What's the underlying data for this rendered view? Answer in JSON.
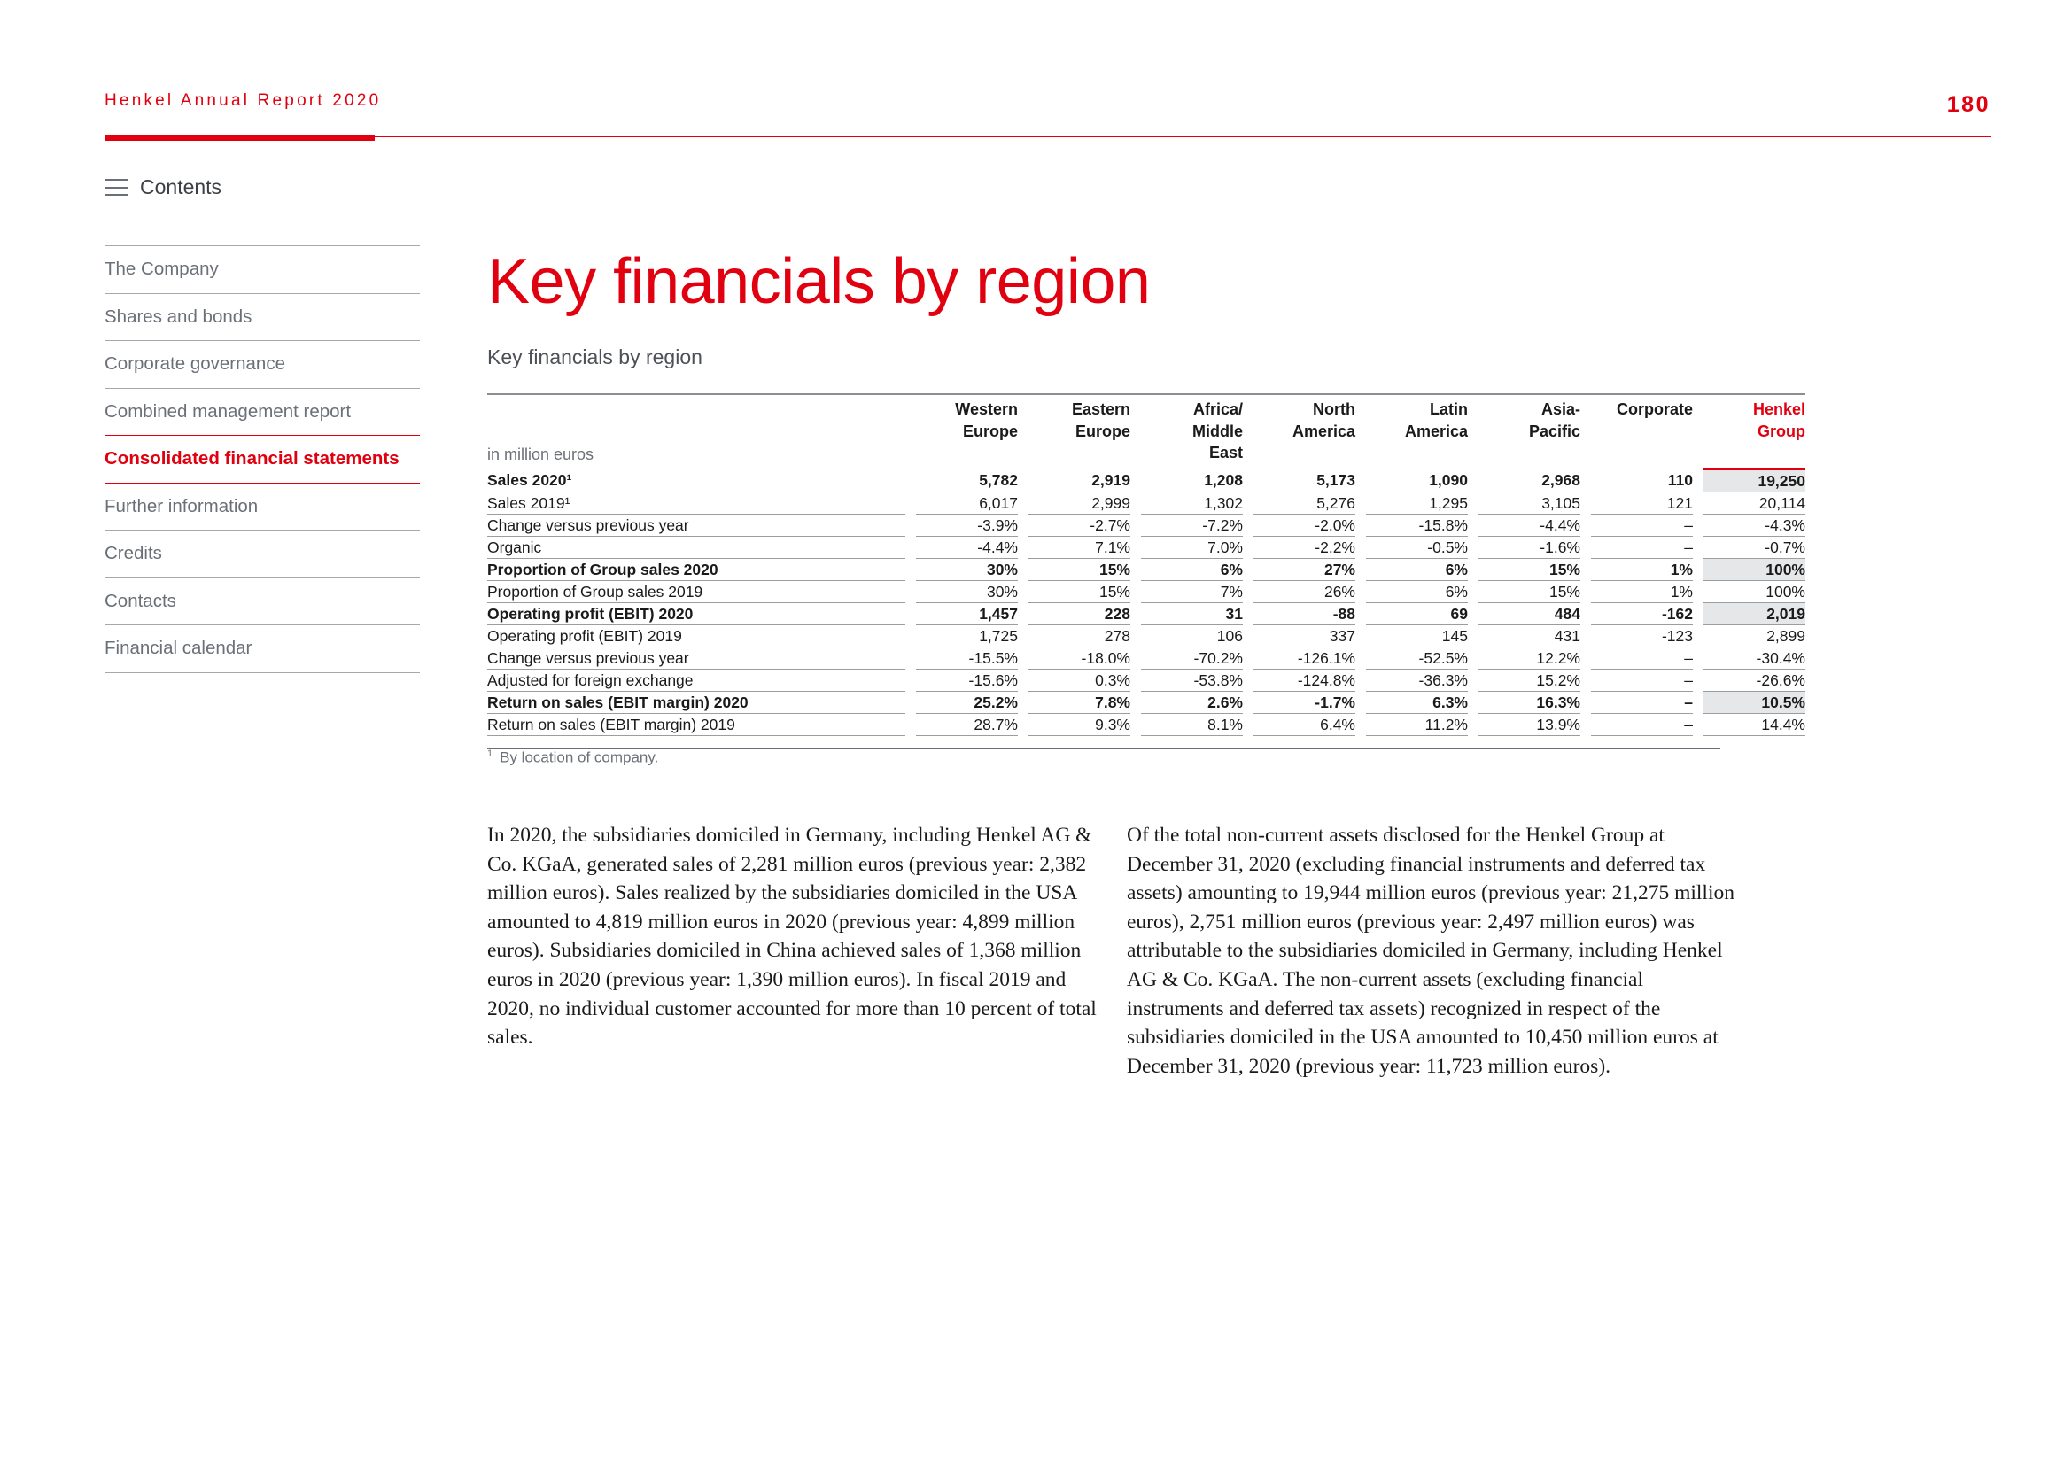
{
  "header": {
    "report_title": "Henkel Annual Report 2020",
    "page_number": "180"
  },
  "nav": {
    "contents_label": "Contents",
    "items": [
      {
        "label": "The Company"
      },
      {
        "label": "Shares and bonds"
      },
      {
        "label": "Corporate governance"
      },
      {
        "label": "Combined management report"
      },
      {
        "label": "Consolidated financial statements"
      },
      {
        "label": "Further information"
      },
      {
        "label": "Credits"
      },
      {
        "label": "Contacts"
      },
      {
        "label": "Financial calendar"
      }
    ],
    "active_index": 4
  },
  "page": {
    "title": "Key financials by region",
    "table_caption": "Key financials by region"
  },
  "table": {
    "unit": "in million euros",
    "columns": [
      {
        "l1": "Western",
        "l2": "Europe",
        "l3": ""
      },
      {
        "l1": "Eastern",
        "l2": "Europe",
        "l3": ""
      },
      {
        "l1": "Africa/",
        "l2": "Middle",
        "l3": "East"
      },
      {
        "l1": "North",
        "l2": "America",
        "l3": ""
      },
      {
        "l1": "Latin",
        "l2": "America",
        "l3": ""
      },
      {
        "l1": "Asia-",
        "l2": "Pacific",
        "l3": ""
      },
      {
        "l1": "Corporate",
        "l2": "",
        "l3": ""
      },
      {
        "l1": "Henkel",
        "l2": "Group",
        "l3": ""
      }
    ],
    "rows": [
      {
        "label": "Sales 2020¹",
        "bold": true,
        "values": [
          "5,782",
          "2,919",
          "1,208",
          "5,173",
          "1,090",
          "2,968",
          "110",
          "19,250"
        ]
      },
      {
        "label": "Sales 2019¹",
        "bold": false,
        "values": [
          "6,017",
          "2,999",
          "1,302",
          "5,276",
          "1,295",
          "3,105",
          "121",
          "20,114"
        ]
      },
      {
        "label": "Change versus previous year",
        "bold": false,
        "values": [
          "-3.9%",
          "-2.7%",
          "-7.2%",
          "-2.0%",
          "-15.8%",
          "-4.4%",
          "–",
          "-4.3%"
        ]
      },
      {
        "label": "Organic",
        "bold": false,
        "values": [
          "-4.4%",
          "7.1%",
          "7.0%",
          "-2.2%",
          "-0.5%",
          "-1.6%",
          "–",
          "-0.7%"
        ]
      },
      {
        "label": "Proportion of Group sales 2020",
        "bold": true,
        "values": [
          "30%",
          "15%",
          "6%",
          "27%",
          "6%",
          "15%",
          "1%",
          "100%"
        ]
      },
      {
        "label": "Proportion of Group sales 2019",
        "bold": false,
        "values": [
          "30%",
          "15%",
          "7%",
          "26%",
          "6%",
          "15%",
          "1%",
          "100%"
        ]
      },
      {
        "label": "Operating profit (EBIT) 2020",
        "bold": true,
        "values": [
          "1,457",
          "228",
          "31",
          "-88",
          "69",
          "484",
          "-162",
          "2,019"
        ]
      },
      {
        "label": "Operating profit (EBIT) 2019",
        "bold": false,
        "values": [
          "1,725",
          "278",
          "106",
          "337",
          "145",
          "431",
          "-123",
          "2,899"
        ]
      },
      {
        "label": "Change versus previous year",
        "bold": false,
        "values": [
          "-15.5%",
          "-18.0%",
          "-70.2%",
          "-126.1%",
          "-52.5%",
          "12.2%",
          "–",
          "-30.4%"
        ]
      },
      {
        "label": "Adjusted for foreign exchange",
        "bold": false,
        "values": [
          "-15.6%",
          "0.3%",
          "-53.8%",
          "-124.8%",
          "-36.3%",
          "15.2%",
          "–",
          "-26.6%"
        ]
      },
      {
        "label": "Return on sales (EBIT margin) 2020",
        "bold": true,
        "values": [
          "25.2%",
          "7.8%",
          "2.6%",
          "-1.7%",
          "6.3%",
          "16.3%",
          "–",
          "10.5%"
        ]
      },
      {
        "label": "Return on sales (EBIT margin) 2019",
        "bold": false,
        "values": [
          "28.7%",
          "9.3%",
          "8.1%",
          "6.4%",
          "11.2%",
          "13.9%",
          "–",
          "14.4%"
        ]
      }
    ],
    "footnote_marker": "1",
    "footnote": "By location of company."
  },
  "body": {
    "left_paragraph": "In 2020, the subsidiaries domiciled in Germany, including Henkel AG & Co. KGaA, generated sales of 2,281 million euros (previous year: 2,382 million euros). Sales realized by the sub­sidiaries domiciled in the USA amounted to 4,819 million euros in 2020 (previous year: 4,899 million euros). Subsidiaries domiciled in China achieved sales of 1,368 million euros in 2020 (previous year: 1,390 million euros). In fiscal 2019 and 2020, no individual customer accounted for more than 10 per­cent of total sales.",
    "right_paragraph": "Of the total non-current assets disclosed for the Henkel Group at December 31, 2020 (excluding financial instruments and deferred tax assets) amounting to 19,944 million euros (previous year: 21,275 million euros), 2,751 million euros (previous year: 2,497 million euros) was attributable to the subsidiaries domiciled in Germany, including Henkel AG & Co. KGaA. The non-current assets (excluding financial instruments and deferred tax assets) recognized in respect of the subsidiaries domiciled in the USA amounted to 10,450 million euros at December 31, 2020 (previous year: 11,723 million euros)."
  },
  "colors": {
    "brand_red": "#e1000f",
    "nav_gray": "#6b7078",
    "highlight_gray": "#e6e7e8"
  }
}
